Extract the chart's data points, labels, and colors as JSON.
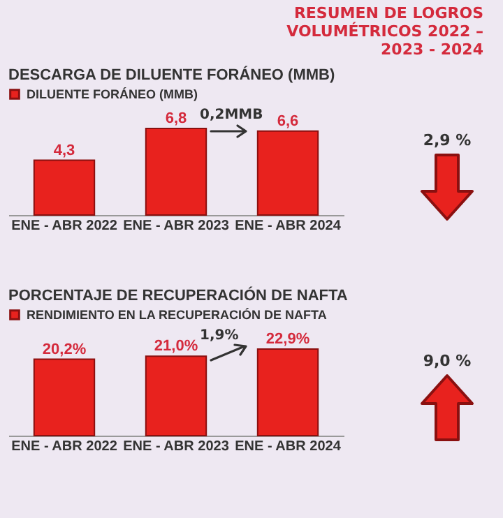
{
  "chart_data": [
    {
      "type": "bar",
      "title": "DESCARGA DE DILUENTE FORÁNEO (MMB)",
      "annotations": [
        "RESUMEN DE LOGROS VOLUMÉTRICOS 2022 – 2023 - 2024",
        "0,2MMB",
        "2,9 %"
      ],
      "categories": [
        "ENE - ABR 2022",
        "ENE - ABR 2023",
        "ENE - ABR 2024"
      ],
      "series": [
        {
          "name": "DILUENTE FORÁNEO  (MMB)",
          "color": "#e8221e",
          "values": [
            4.3,
            6.8,
            6.6
          ],
          "value_labels": [
            "4,3",
            "6,8",
            "6,6"
          ]
        }
      ],
      "legend": "top left",
      "tick_labels": "x"
    },
    {
      "type": "bar",
      "title": "PORCENTAJE DE RECUPERACIÓN DE NAFTA",
      "annotations": [
        "1,9%",
        "9,0 %"
      ],
      "categories": [
        "ENE - ABR 2022",
        "ENE - ABR 2023",
        "ENE - ABR 2024"
      ],
      "series": [
        {
          "name": "RENDIMIENTO EN LA RECUPERACIÓN DE NAFTA",
          "color": "#e8221e",
          "values": [
            20.2,
            21.0,
            22.9
          ],
          "value_labels": [
            "20,2%",
            "21,0%",
            "22,9%"
          ]
        }
      ],
      "legend": "top left",
      "tick_labels": "x"
    }
  ]
}
